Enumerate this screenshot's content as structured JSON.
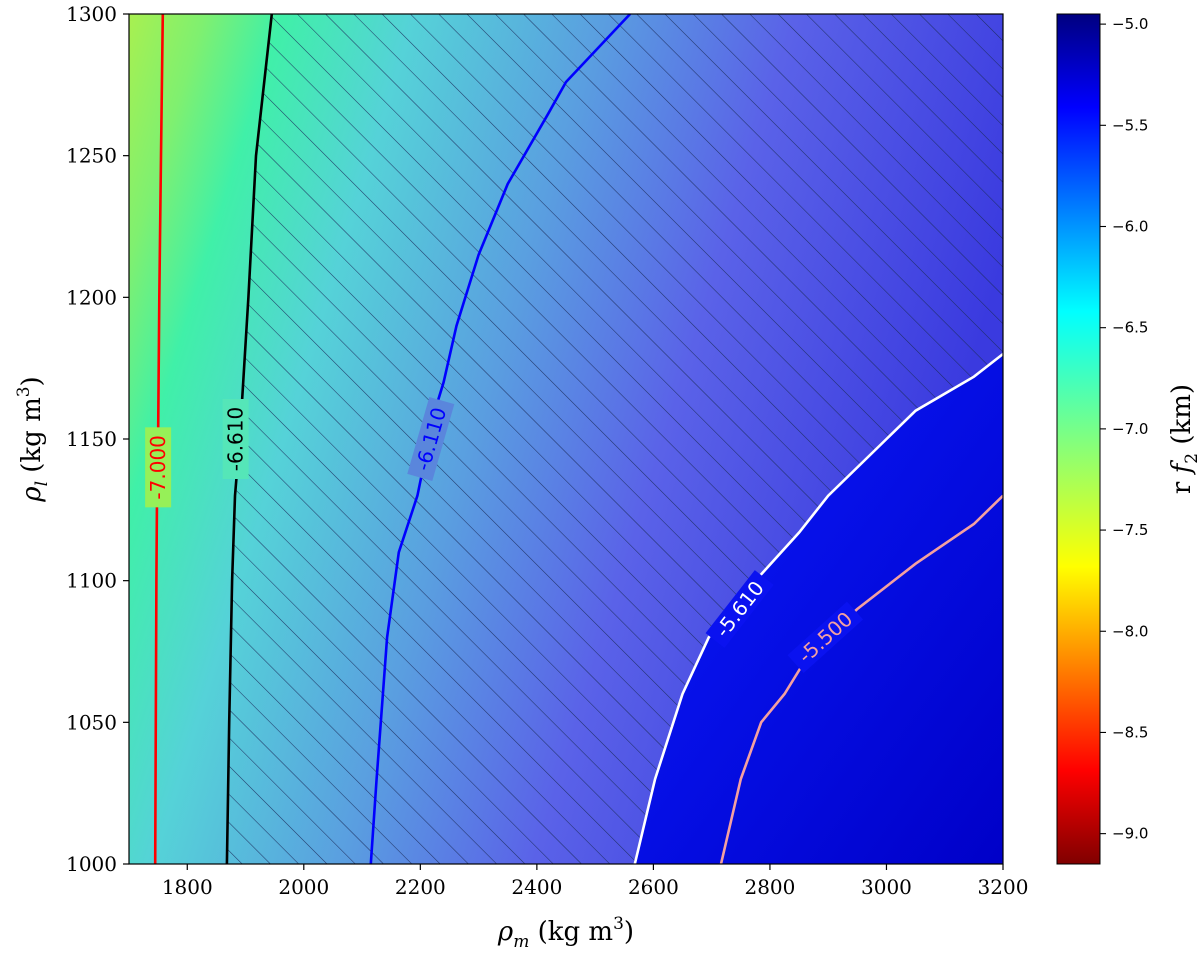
{
  "chart_data": {
    "type": "heatmap",
    "title": "",
    "xlabel": {
      "sym": "ρ",
      "sub": "m",
      "units": " (kg m",
      "sup": "3",
      "close": ")"
    },
    "ylabel": {
      "sym": "ρ",
      "sub": "l",
      "units": " (kg m",
      "sup": "3",
      "close": ")"
    },
    "colorbar_label": {
      "pre": "r ",
      "sym": "f",
      "sub": "2",
      "post": " (km)"
    },
    "xlim": [
      1700,
      3200
    ],
    "ylim": [
      1000,
      1300
    ],
    "xticks": [
      1800,
      2000,
      2200,
      2400,
      2600,
      2800,
      3000,
      3200
    ],
    "yticks": [
      1000,
      1050,
      1100,
      1150,
      1200,
      1250,
      1300
    ],
    "colorbar_range": [
      -9.15,
      -4.95
    ],
    "colorbar_ticks": [
      "−5.0",
      "−5.5",
      "−6.0",
      "−6.5",
      "−7.0",
      "−7.5",
      "−8.0",
      "−8.5",
      "−9.0"
    ],
    "colorbar_tick_values": [
      -5.0,
      -5.5,
      -6.0,
      -6.5,
      -7.0,
      -7.5,
      -8.0,
      -8.5,
      -9.0
    ],
    "colormap": "jet",
    "hatched_region": {
      "x_from_contour": "-6.610",
      "y_below_contour": "-5.610",
      "pattern": "diagonal",
      "color": "#1a2a5a"
    },
    "contours": [
      {
        "label": "-7.000",
        "color": "#ff0000",
        "points": [
          [
            1745,
            1000
          ],
          [
            1746,
            1050
          ],
          [
            1747,
            1100
          ],
          [
            1748,
            1130
          ],
          [
            1750,
            1150
          ],
          [
            1752,
            1200
          ],
          [
            1755,
            1250
          ],
          [
            1758,
            1300
          ]
        ]
      },
      {
        "label": "-6.610",
        "color": "#000000",
        "points": [
          [
            1868,
            1000
          ],
          [
            1872,
            1050
          ],
          [
            1877,
            1100
          ],
          [
            1882,
            1130
          ],
          [
            1890,
            1150
          ],
          [
            1896,
            1170
          ],
          [
            1905,
            1200
          ],
          [
            1918,
            1250
          ],
          [
            1945,
            1300
          ]
        ]
      },
      {
        "label": "-6.110",
        "color": "#0000ff",
        "points": [
          [
            2115,
            1000
          ],
          [
            2125,
            1030
          ],
          [
            2143,
            1080
          ],
          [
            2163,
            1110
          ],
          [
            2195,
            1130
          ],
          [
            2225,
            1160
          ],
          [
            2240,
            1170
          ],
          [
            2262,
            1190
          ],
          [
            2300,
            1215
          ],
          [
            2350,
            1240
          ],
          [
            2420,
            1265
          ],
          [
            2450,
            1276
          ],
          [
            2560,
            1300
          ]
        ]
      },
      {
        "label": "-5.610",
        "color": "#ffffff",
        "points": [
          [
            2568,
            1000
          ],
          [
            2603,
            1030
          ],
          [
            2650,
            1060
          ],
          [
            2695,
            1080
          ],
          [
            2775,
            1100
          ],
          [
            2850,
            1117
          ],
          [
            2900,
            1130
          ],
          [
            3000,
            1150
          ],
          [
            3050,
            1160
          ],
          [
            3150,
            1172
          ],
          [
            3200,
            1180
          ]
        ]
      },
      {
        "label": "-5.500",
        "color": "#f4a0a0",
        "points": [
          [
            2716,
            1000
          ],
          [
            2750,
            1030
          ],
          [
            2785,
            1050
          ],
          [
            2825,
            1060
          ],
          [
            2870,
            1075
          ],
          [
            2950,
            1090
          ],
          [
            3050,
            1106
          ],
          [
            3150,
            1120
          ],
          [
            3200,
            1130
          ]
        ]
      }
    ]
  }
}
